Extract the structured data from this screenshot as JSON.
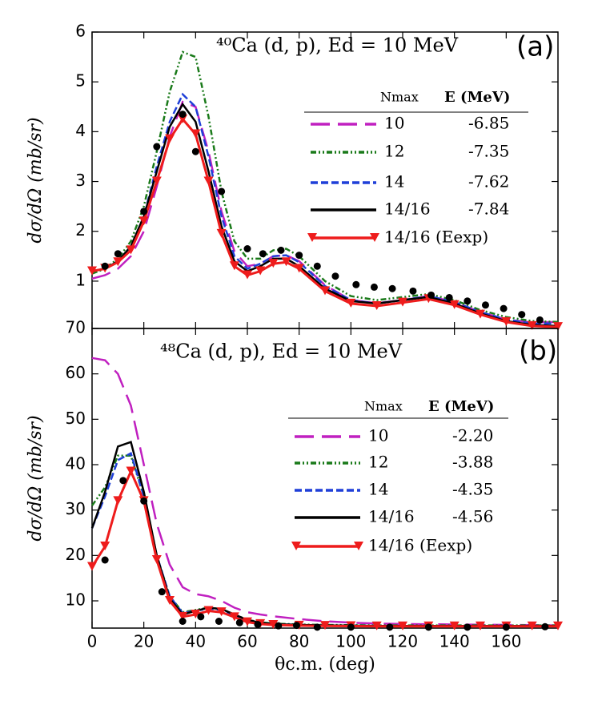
{
  "chart_data": [
    {
      "type": "line",
      "title": "⁴⁰Ca (d, p), Ed = 10 MeV",
      "panel_label": "(a)",
      "ylabel": "dσ/dΩ (mb/sr)",
      "ylim": [
        0.05,
        6
      ],
      "yticks": [
        1,
        2,
        3,
        4,
        5,
        6
      ],
      "xlim": [
        0,
        180
      ],
      "legend_headers": [
        "Nmax",
        "E (MeV)"
      ],
      "x": [
        0,
        5,
        10,
        15,
        20,
        25,
        30,
        35,
        40,
        45,
        50,
        55,
        60,
        65,
        70,
        75,
        80,
        90,
        100,
        110,
        120,
        130,
        140,
        150,
        160,
        170,
        180
      ],
      "series": [
        {
          "name": "10",
          "energy": "-6.85",
          "color": "#c020c0",
          "style": "long-dash",
          "values": [
            1.05,
            1.12,
            1.25,
            1.5,
            2.0,
            2.9,
            3.9,
            4.6,
            4.5,
            3.6,
            2.4,
            1.6,
            1.3,
            1.35,
            1.5,
            1.52,
            1.4,
            0.92,
            0.62,
            0.56,
            0.62,
            0.7,
            0.58,
            0.38,
            0.23,
            0.17,
            0.18
          ]
        },
        {
          "name": "12",
          "energy": "-7.35",
          "color": "#1a7a1a",
          "style": "dash-dot-dot",
          "values": [
            1.15,
            1.25,
            1.45,
            1.8,
            2.5,
            3.6,
            4.8,
            5.6,
            5.5,
            4.3,
            2.8,
            1.8,
            1.45,
            1.45,
            1.62,
            1.65,
            1.5,
            1.0,
            0.7,
            0.62,
            0.68,
            0.74,
            0.62,
            0.42,
            0.28,
            0.2,
            0.18
          ]
        },
        {
          "name": "14",
          "energy": "-7.62",
          "color": "#1f3fd8",
          "style": "dash",
          "values": [
            1.2,
            1.25,
            1.4,
            1.7,
            2.3,
            3.3,
            4.2,
            4.75,
            4.5,
            3.5,
            2.3,
            1.5,
            1.25,
            1.35,
            1.5,
            1.52,
            1.38,
            0.9,
            0.62,
            0.55,
            0.62,
            0.7,
            0.58,
            0.38,
            0.23,
            0.15,
            0.15
          ]
        },
        {
          "name": "14/16",
          "energy": "-7.84",
          "color": "#000000",
          "style": "solid",
          "values": [
            1.2,
            1.25,
            1.4,
            1.7,
            2.3,
            3.2,
            4.1,
            4.55,
            4.2,
            3.2,
            2.1,
            1.4,
            1.2,
            1.3,
            1.45,
            1.45,
            1.3,
            0.85,
            0.6,
            0.55,
            0.62,
            0.68,
            0.55,
            0.35,
            0.2,
            0.12,
            0.1
          ]
        },
        {
          "name": "14/16 (Eexp)",
          "color": "#ee1c1c",
          "style": "triangles",
          "values": [
            1.2,
            1.25,
            1.38,
            1.62,
            2.2,
            3.0,
            3.85,
            4.25,
            3.95,
            3.0,
            1.95,
            1.3,
            1.12,
            1.2,
            1.35,
            1.38,
            1.25,
            0.8,
            0.55,
            0.5,
            0.57,
            0.64,
            0.52,
            0.33,
            0.18,
            0.1,
            0.08
          ]
        }
      ],
      "experiment": {
        "color": "#000000",
        "x": [
          5,
          10,
          20,
          25,
          35,
          40,
          50,
          60,
          66,
          73,
          80,
          87,
          94,
          102,
          109,
          116,
          124,
          131,
          138,
          145,
          152,
          159,
          166,
          173
        ],
        "values": [
          1.3,
          1.55,
          2.4,
          3.7,
          4.35,
          3.6,
          2.8,
          1.65,
          1.55,
          1.62,
          1.52,
          1.3,
          1.1,
          0.93,
          0.88,
          0.85,
          0.8,
          0.72,
          0.67,
          0.6,
          0.52,
          0.45,
          0.33,
          0.22
        ]
      }
    },
    {
      "type": "line",
      "title": "⁴⁸Ca (d, p), Ed = 10 MeV",
      "panel_label": "(b)",
      "ylabel": "dσ/dΩ (mb/sr)",
      "xlabel": "θc.m. (deg)",
      "ylim": [
        4,
        70
      ],
      "yticks": [
        10,
        20,
        30,
        40,
        50,
        60,
        70
      ],
      "xlim": [
        0,
        180
      ],
      "xticks": [
        0,
        20,
        40,
        60,
        80,
        100,
        120,
        140,
        160
      ],
      "legend_headers": [
        "Nmax",
        "E (MeV)"
      ],
      "x": [
        0,
        5,
        10,
        15,
        20,
        25,
        30,
        35,
        40,
        45,
        50,
        55,
        60,
        65,
        70,
        80,
        90,
        100,
        110,
        120,
        130,
        140,
        150,
        160,
        170,
        180
      ],
      "series": [
        {
          "name": "10",
          "energy": "-2.20",
          "color": "#c020c0",
          "style": "long-dash",
          "values": [
            63.5,
            63,
            60,
            53,
            40,
            27,
            18,
            13,
            11.5,
            11,
            10,
            8.5,
            7.5,
            7,
            6.6,
            6,
            5.5,
            5.2,
            5,
            4.9,
            4.85,
            4.8,
            4.75,
            4.7,
            4.65,
            4.6
          ]
        },
        {
          "name": "12",
          "energy": "-3.88",
          "color": "#1a7a1a",
          "style": "dash-dot-dot",
          "values": [
            31,
            35,
            42,
            42,
            33,
            20,
            11,
            7.5,
            8,
            8.5,
            8.2,
            7,
            5.8,
            5.3,
            5,
            4.8,
            4.7,
            4.65,
            4.6,
            4.6,
            4.6,
            4.6,
            4.6,
            4.6,
            4.6,
            4.6
          ]
        },
        {
          "name": "14",
          "energy": "-4.35",
          "color": "#1f3fd8",
          "style": "dash",
          "values": [
            26,
            33,
            41,
            42.5,
            33,
            20,
            11,
            7.3,
            7.8,
            8.3,
            8,
            6.8,
            5.7,
            5.2,
            4.9,
            4.7,
            4.6,
            4.55,
            4.5,
            4.5,
            4.5,
            4.5,
            4.5,
            4.5,
            4.5,
            4.5
          ]
        },
        {
          "name": "14/16",
          "energy": "-4.56",
          "color": "#000000",
          "style": "solid",
          "values": [
            26,
            34,
            44,
            45,
            34,
            20,
            10.5,
            7,
            7.8,
            8.5,
            8.2,
            7,
            5.8,
            5.2,
            4.9,
            4.7,
            4.6,
            4.55,
            4.5,
            4.5,
            4.5,
            4.5,
            4.5,
            4.5,
            4.5,
            4.5
          ]
        },
        {
          "name": "14/16 (Eexp)",
          "color": "#ee1c1c",
          "style": "triangles",
          "values": [
            17.5,
            22,
            32,
            38.5,
            32,
            19,
            10,
            6.5,
            7,
            7.8,
            7.5,
            6.4,
            5.3,
            4.9,
            4.7,
            4.55,
            4.5,
            4.45,
            4.4,
            4.4,
            4.4,
            4.4,
            4.4,
            4.4,
            4.4,
            4.4
          ]
        }
      ],
      "experiment": {
        "color": "#000000",
        "x": [
          5,
          12,
          20,
          27,
          35,
          42,
          49,
          57,
          64,
          72,
          79,
          87,
          100,
          115,
          130,
          145,
          160,
          175
        ],
        "values": [
          19,
          36.5,
          32,
          12,
          5.5,
          6.5,
          5.5,
          5.2,
          4.8,
          4.5,
          4.6,
          4.2,
          4.2,
          4.2,
          4.2,
          4.2,
          4.2,
          4.3
        ]
      }
    }
  ]
}
